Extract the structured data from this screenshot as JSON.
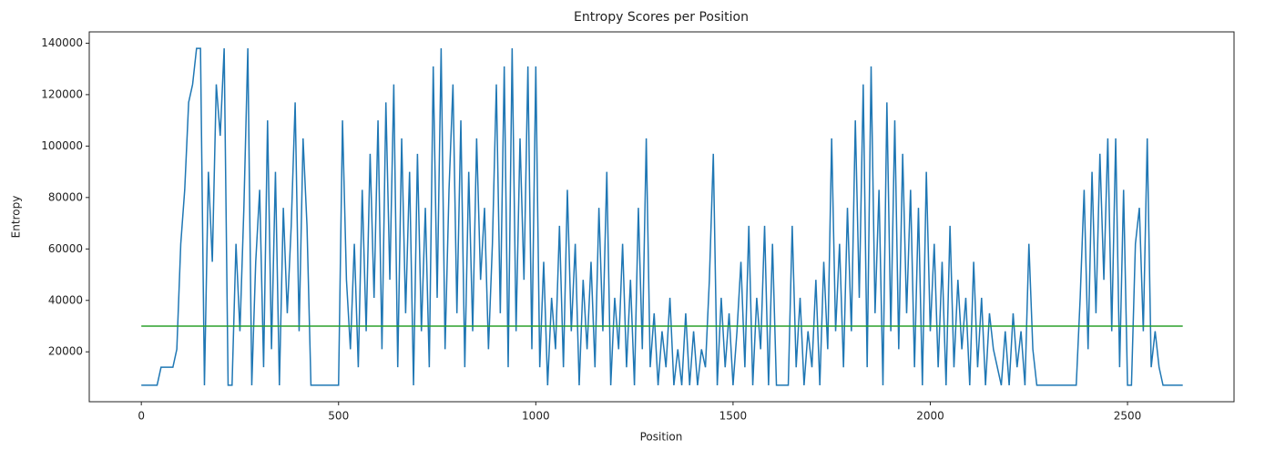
{
  "chart_data": {
    "type": "line",
    "title": "Entropy Scores per Position",
    "x_label": "Position",
    "y_label": "Entropy",
    "xlim": [
      -132,
      2770
    ],
    "ylim": [
      600,
      144400
    ],
    "xticks": [
      0,
      500,
      1000,
      1500,
      2000,
      2500
    ],
    "yticks": [
      20000,
      40000,
      60000,
      80000,
      100000,
      120000,
      140000
    ],
    "series": [
      {
        "color": "#1f77b4",
        "x": [
          0,
          10,
          20,
          30,
          40,
          50,
          60,
          70,
          80,
          90,
          100,
          110,
          120,
          130,
          140,
          150,
          160,
          170,
          180,
          190,
          200,
          210,
          220,
          230,
          240,
          250,
          260,
          270,
          280,
          290,
          300,
          310,
          320,
          330,
          340,
          350,
          360,
          370,
          380,
          390,
          400,
          410,
          420,
          430,
          440,
          450,
          460,
          470,
          480,
          490,
          500,
          510,
          520,
          530,
          540,
          550,
          560,
          570,
          580,
          590,
          600,
          610,
          620,
          630,
          640,
          650,
          660,
          670,
          680,
          690,
          700,
          710,
          720,
          730,
          740,
          750,
          760,
          770,
          780,
          790,
          800,
          810,
          820,
          830,
          840,
          850,
          860,
          870,
          880,
          890,
          900,
          910,
          920,
          930,
          940,
          950,
          960,
          970,
          980,
          990,
          1000,
          1010,
          1020,
          1030,
          1040,
          1050,
          1060,
          1070,
          1080,
          1090,
          1100,
          1110,
          1120,
          1130,
          1140,
          1150,
          1160,
          1170,
          1180,
          1190,
          1200,
          1210,
          1220,
          1230,
          1240,
          1250,
          1260,
          1270,
          1280,
          1290,
          1300,
          1310,
          1320,
          1330,
          1340,
          1350,
          1360,
          1370,
          1380,
          1390,
          1400,
          1410,
          1420,
          1430,
          1440,
          1450,
          1460,
          1470,
          1480,
          1490,
          1500,
          1510,
          1520,
          1530,
          1540,
          1550,
          1560,
          1570,
          1580,
          1590,
          1600,
          1610,
          1620,
          1630,
          1640,
          1650,
          1660,
          1670,
          1680,
          1690,
          1700,
          1710,
          1720,
          1730,
          1740,
          1750,
          1760,
          1770,
          1780,
          1790,
          1800,
          1810,
          1820,
          1830,
          1840,
          1850,
          1860,
          1870,
          1880,
          1890,
          1900,
          1910,
          1920,
          1930,
          1940,
          1950,
          1960,
          1970,
          1980,
          1990,
          2000,
          2010,
          2020,
          2030,
          2040,
          2050,
          2060,
          2070,
          2080,
          2090,
          2100,
          2110,
          2120,
          2130,
          2140,
          2150,
          2160,
          2170,
          2180,
          2190,
          2200,
          2210,
          2220,
          2230,
          2240,
          2250,
          2260,
          2270,
          2280,
          2290,
          2300,
          2310,
          2320,
          2330,
          2340,
          2350,
          2360,
          2370,
          2380,
          2390,
          2400,
          2410,
          2420,
          2430,
          2440,
          2450,
          2460,
          2470,
          2480,
          2490,
          2500,
          2510,
          2520,
          2530,
          2540,
          2550,
          2560,
          2570,
          2580,
          2590,
          2600,
          2610,
          2620,
          2630,
          2640
        ],
        "values": [
          7000,
          7000,
          7000,
          7000,
          7000,
          14000,
          14000,
          14000,
          14000,
          21000,
          62000,
          83000,
          117000,
          124000,
          138000,
          138000,
          7000,
          90000,
          55000,
          124000,
          104000,
          138000,
          7000,
          7000,
          62000,
          28000,
          76000,
          138000,
          7000,
          55000,
          83000,
          14000,
          110000,
          21000,
          90000,
          7000,
          76000,
          35000,
          69000,
          117000,
          28000,
          103000,
          69000,
          7000,
          7000,
          7000,
          7000,
          7000,
          7000,
          7000,
          7000,
          110000,
          48000,
          21000,
          62000,
          14000,
          83000,
          28000,
          97000,
          41000,
          110000,
          21000,
          117000,
          48000,
          124000,
          14000,
          103000,
          35000,
          90000,
          7000,
          97000,
          28000,
          76000,
          14000,
          131000,
          41000,
          138000,
          21000,
          83000,
          124000,
          35000,
          110000,
          14000,
          90000,
          28000,
          103000,
          48000,
          76000,
          21000,
          62000,
          124000,
          35000,
          131000,
          14000,
          138000,
          28000,
          103000,
          48000,
          131000,
          21000,
          131000,
          14000,
          55000,
          7000,
          41000,
          21000,
          69000,
          14000,
          83000,
          28000,
          62000,
          7000,
          48000,
          21000,
          55000,
          14000,
          76000,
          28000,
          90000,
          7000,
          41000,
          21000,
          62000,
          14000,
          48000,
          7000,
          76000,
          21000,
          103000,
          14000,
          35000,
          7000,
          28000,
          14000,
          41000,
          7000,
          21000,
          7000,
          35000,
          7000,
          28000,
          7000,
          21000,
          14000,
          48000,
          97000,
          7000,
          41000,
          14000,
          35000,
          7000,
          28000,
          55000,
          14000,
          69000,
          7000,
          41000,
          21000,
          69000,
          7000,
          62000,
          7000,
          7000,
          7000,
          7000,
          69000,
          14000,
          41000,
          7000,
          28000,
          14000,
          48000,
          7000,
          55000,
          21000,
          103000,
          28000,
          62000,
          14000,
          76000,
          28000,
          110000,
          41000,
          124000,
          14000,
          131000,
          35000,
          83000,
          7000,
          117000,
          28000,
          110000,
          21000,
          97000,
          35000,
          83000,
          14000,
          76000,
          7000,
          90000,
          28000,
          62000,
          14000,
          55000,
          7000,
          69000,
          14000,
          48000,
          21000,
          41000,
          7000,
          55000,
          14000,
          41000,
          7000,
          35000,
          21000,
          14000,
          7000,
          28000,
          7000,
          35000,
          14000,
          28000,
          7000,
          62000,
          21000,
          7000,
          7000,
          7000,
          7000,
          7000,
          7000,
          7000,
          7000,
          7000,
          7000,
          7000,
          41000,
          83000,
          21000,
          90000,
          35000,
          97000,
          48000,
          103000,
          28000,
          103000,
          14000,
          83000,
          7000,
          7000,
          62000,
          76000,
          28000,
          103000,
          14000,
          28000,
          14000,
          7000,
          7000,
          7000,
          7000,
          7000,
          7000
        ]
      },
      {
        "color": "#2ca02c",
        "x": [
          0,
          2640
        ],
        "values": [
          30000,
          30000
        ]
      }
    ]
  }
}
